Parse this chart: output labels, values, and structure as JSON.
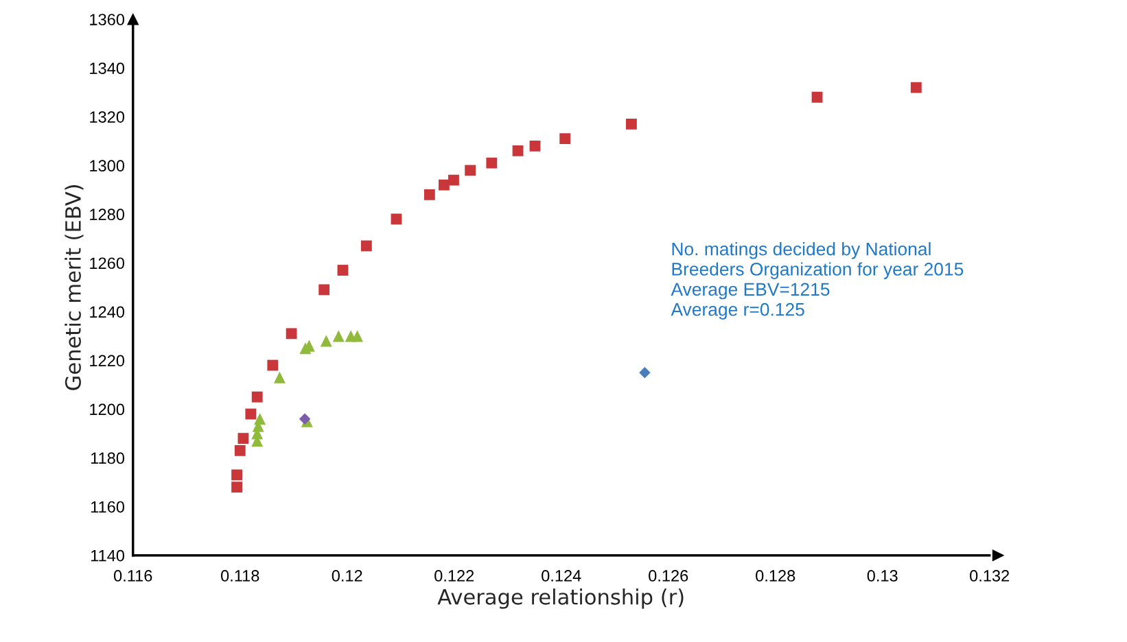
{
  "chart_data": {
    "type": "scatter",
    "xlabel": "Average relationship (r)",
    "ylabel": "Genetic merit (EBV)",
    "annotations": [
      "No. matings decided by National\nBreeders Organization for year 2015\nAverage EBV=1215\nAverage r=0.125"
    ],
    "xlim": [
      0.116,
      0.132
    ],
    "xticks": [
      0.116,
      0.118,
      0.12,
      0.122,
      0.124,
      0.126,
      0.128,
      0.13,
      0.132
    ],
    "ylim": [
      1140,
      1360
    ],
    "yticks": [
      1140,
      1160,
      1180,
      1200,
      1220,
      1240,
      1260,
      1280,
      1300,
      1320,
      1340,
      1360
    ],
    "grid": false,
    "legend": false,
    "series": [
      {
        "color": "#c9373a",
        "marker": "square",
        "x": [
          0.11794,
          0.11794,
          0.118,
          0.11806,
          0.1182,
          0.11832,
          0.11861,
          0.11896,
          0.11957,
          0.11992,
          0.12036,
          0.12092,
          0.12154,
          0.12181,
          0.12199,
          0.1223,
          0.1227,
          0.12319,
          0.12351,
          0.12407,
          0.12531,
          0.12878,
          0.13063
        ],
        "values": [
          1168,
          1173,
          1183,
          1188,
          1198,
          1205,
          1218,
          1231,
          1249,
          1257,
          1267,
          1278,
          1288,
          1292,
          1294,
          1298,
          1301,
          1306,
          1308,
          1311,
          1317,
          1328,
          1332
        ]
      },
      {
        "color": "#8fba3c",
        "marker": "triangle",
        "x": [
          0.11832,
          0.11832,
          0.11834,
          0.11837,
          0.11874,
          0.11922,
          0.11929,
          0.11961,
          0.11984,
          0.12007,
          0.12019,
          0.11925
        ],
        "values": [
          1187,
          1190,
          1193,
          1196,
          1213,
          1225,
          1226,
          1228,
          1230,
          1230,
          1230,
          1195
        ]
      },
      {
        "color": "#7b5ea7",
        "marker": "diamond",
        "x": [
          0.11921
        ],
        "values": [
          1196
        ]
      },
      {
        "color": "#4a7ebb",
        "marker": "diamond",
        "x": [
          0.12556
        ],
        "values": [
          1215
        ]
      }
    ]
  }
}
